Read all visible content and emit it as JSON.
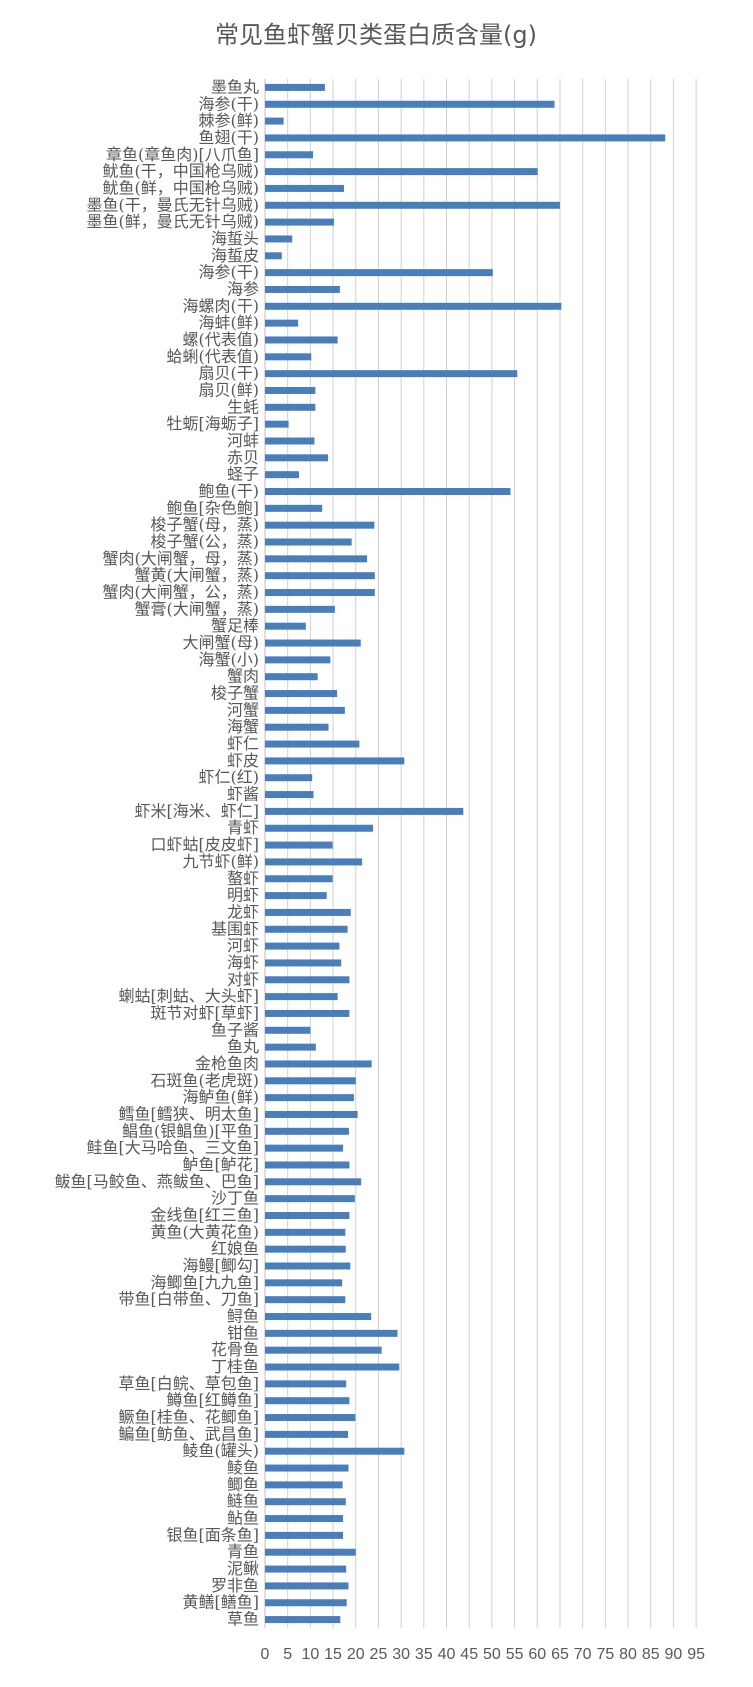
{
  "chart_data": {
    "type": "bar",
    "orientation": "horizontal",
    "title": "常见鱼虾蟹贝类蛋白质含量(g)",
    "xlabel": "",
    "ylabel": "",
    "xlim": [
      0,
      95
    ],
    "x_ticks": [
      "0",
      "5",
      "10",
      "15",
      "20",
      "25",
      "30",
      "35",
      "40",
      "45",
      "50",
      "55",
      "60",
      "65",
      "70",
      "75",
      "80",
      "85",
      "90",
      "95"
    ],
    "grid": "vertical",
    "legend": "none",
    "bar_color": "#4a7ebb",
    "categories": [
      "墨鱼丸",
      "海参(干)",
      "棘参(鲜)",
      "鱼翅(干)",
      "章鱼(章鱼肉)[八爪鱼]",
      "鱿鱼(干，中国枪乌贼)",
      "鱿鱼(鲜，中国枪乌贼)",
      "墨鱼(干，曼氏无针乌贼)",
      "墨鱼(鲜，曼氏无针乌贼)",
      "海蜇头",
      "海蜇皮",
      "海参(干)",
      "海参",
      "海螺肉(干)",
      "海蚌(鲜)",
      "螺(代表值)",
      "蛤蜊(代表值)",
      "扇贝(干)",
      "扇贝(鲜)",
      "生蚝",
      "牡蛎[海蛎子]",
      "河蚌",
      "赤贝",
      "蛏子",
      "鲍鱼(干)",
      "鲍鱼[杂色鲍]",
      "梭子蟹(母，蒸)",
      "梭子蟹(公，蒸)",
      "蟹肉(大闸蟹，母，蒸)",
      "蟹黄(大闸蟹，蒸)",
      "蟹肉(大闸蟹，公，蒸)",
      "蟹膏(大闸蟹，蒸)",
      "蟹足棒",
      "大闸蟹(母)",
      "海蟹(小)",
      "蟹肉",
      "梭子蟹",
      "河蟹",
      "海蟹",
      "虾仁",
      "虾皮",
      "虾仁(红)",
      "虾酱",
      "虾米[海米、虾仁]",
      "青虾",
      "口虾蛄[皮皮虾]",
      "九节虾(鲜)",
      "螯虾",
      "明虾",
      "龙虾",
      "基围虾",
      "河虾",
      "海虾",
      "对虾",
      "蝲蛄[刺蛄、大头虾]",
      "斑节对虾[草虾]",
      "鱼子酱",
      "鱼丸",
      "金枪鱼肉",
      "石斑鱼(老虎斑)",
      "海鲈鱼(鲜)",
      "鳕鱼[鳕狭、明太鱼]",
      "鲳鱼(银鲳鱼)[平鱼]",
      "鲑鱼[大马哈鱼、三文鱼]",
      "鲈鱼[鲈花]",
      "鲅鱼[马鲛鱼、燕鲅鱼、巴鱼]",
      "沙丁鱼",
      "金线鱼[红三鱼]",
      "黄鱼(大黄花鱼)",
      "红娘鱼",
      "海鳗[鲫勾]",
      "海鲫鱼[九九鱼]",
      "带鱼[白带鱼、刀鱼]",
      "鲟鱼",
      "钳鱼",
      "花骨鱼",
      "丁桂鱼",
      "草鱼[白鲩、草包鱼]",
      "鳟鱼[红鳟鱼]",
      "鳜鱼[桂鱼、花鲫鱼]",
      "鳊鱼[鲂鱼、武昌鱼]",
      "鲮鱼(罐头)",
      "鲮鱼",
      "鲫鱼",
      "鲢鱼",
      "鲇鱼",
      "银鱼[面条鱼]",
      "青鱼",
      "泥鳅",
      "罗非鱼",
      "黄鳝[鳝鱼]",
      "草鱼"
    ],
    "values": [
      13.2,
      63.8,
      4.1,
      88.2,
      10.6,
      60.1,
      17.4,
      65.0,
      15.2,
      6.0,
      3.7,
      50.2,
      16.5,
      65.3,
      7.3,
      16.0,
      10.2,
      55.6,
      11.1,
      11.1,
      5.2,
      10.9,
      13.9,
      7.5,
      54.1,
      12.6,
      24.1,
      19.1,
      22.5,
      24.2,
      24.2,
      15.4,
      9.0,
      21.1,
      14.4,
      11.6,
      15.9,
      17.6,
      14.0,
      20.8,
      30.7,
      10.4,
      10.7,
      43.7,
      23.8,
      14.9,
      21.4,
      14.9,
      13.6,
      18.9,
      18.2,
      16.4,
      16.8,
      18.6,
      16.0,
      18.6,
      10.0,
      11.2,
      23.5,
      20.0,
      19.6,
      20.4,
      18.5,
      17.2,
      18.6,
      21.2,
      19.8,
      18.6,
      17.7,
      17.8,
      18.8,
      17.0,
      17.7,
      23.4,
      29.2,
      25.7,
      29.6,
      17.9,
      18.6,
      19.9,
      18.3,
      30.7,
      18.4,
      17.1,
      17.8,
      17.2,
      17.2,
      20.0,
      17.9,
      18.4,
      18.0,
      16.6
    ]
  }
}
